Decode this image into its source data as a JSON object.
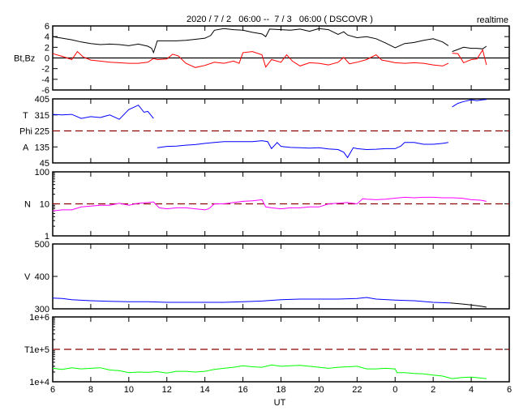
{
  "chart_data": {
    "type": "line",
    "title": "2020 / 7 / 2   06:00 --  7 / 3   06:00 ( DSCOVR )",
    "mode_label": "realtime",
    "xlabel": "UT",
    "xlim": [
      6,
      30
    ],
    "x_ticks": [
      "6",
      "8",
      "10",
      "12",
      "14",
      "16",
      "18",
      "20",
      "22",
      "0",
      "2",
      "4",
      "6"
    ],
    "colors": {
      "bt": "#000000",
      "bz": "#ff0000",
      "phi": "#0000ff",
      "n": "#ff00ff",
      "v": "#0000ff",
      "t": "#00ff00",
      "ref": "#8b0000"
    },
    "panels": [
      {
        "name": "bt-bz",
        "ylabel": "Bt,Bz",
        "scale": "linear",
        "ylim": [
          -6,
          6
        ],
        "y_ticks": [
          "6",
          "4",
          "2",
          "0",
          "-2",
          "-4",
          "-6"
        ],
        "y_tick_values": [
          6,
          4,
          2,
          0,
          -2,
          -4,
          -6
        ],
        "zero_line": 0,
        "series": [
          {
            "name": "Bt",
            "color_key": "bt",
            "x": [
              6,
              6.5,
              7,
              7.5,
              8,
              8.5,
              9,
              9.5,
              10,
              10.5,
              11,
              11.2,
              11.3,
              11.5,
              12,
              12.5,
              13,
              13.5,
              14,
              14.3,
              14.5,
              15,
              15.5,
              16,
              16.5,
              17,
              17.2,
              17.4,
              18,
              18.5,
              19,
              19.5,
              20,
              20.5,
              21,
              21.3,
              21.5,
              22,
              22.5,
              23,
              23.5,
              24,
              24.5,
              25,
              25.5,
              26,
              26.5,
              26.8
            ],
            "y": [
              4,
              3.7,
              3.4,
              3,
              2.7,
              2.5,
              2.6,
              2.5,
              2.3,
              2.6,
              2.2,
              1.8,
              1.0,
              3.2,
              3.2,
              3.2,
              3.3,
              3.5,
              3.7,
              4.2,
              5.2,
              5.5,
              5.3,
              5.2,
              4.8,
              4.5,
              4.0,
              5.4,
              5.3,
              5.2,
              5.4,
              5.0,
              5.5,
              5.3,
              4.4,
              4.9,
              4.3,
              3.8,
              4.0,
              3.6,
              2.8,
              1.9,
              2.7,
              2.9,
              3.3,
              3.6,
              3.0,
              2.3
            ]
          },
          {
            "name": "Bt (late)",
            "color_key": "bt",
            "x": [
              27,
              27.3,
              27.6,
              28,
              28.3,
              28.6,
              28.8
            ],
            "y": [
              1.2,
              1.6,
              2.0,
              1.8,
              1.8,
              1.7,
              2.2
            ]
          },
          {
            "name": "Bz",
            "color_key": "bz",
            "x": [
              6,
              6.5,
              7,
              7.3,
              7.6,
              8,
              8.5,
              9,
              9.5,
              10,
              10.5,
              11,
              11.3,
              11.5,
              12,
              12.3,
              12.6,
              13,
              13.5,
              14,
              14.5,
              15,
              15.5,
              15.8,
              16,
              16.5,
              17,
              17.2,
              17.5,
              18,
              18.3,
              18.6,
              19,
              19.5,
              20,
              20.5,
              21,
              21.3,
              21.6,
              22,
              22.5,
              23,
              23.3,
              23.6,
              24,
              24.5,
              25,
              25.5,
              26,
              26.5,
              26.8
            ],
            "y": [
              0.8,
              0.3,
              -0.3,
              1.2,
              0.2,
              -0.4,
              -0.6,
              -0.8,
              -0.9,
              -1.0,
              -1.0,
              -0.8,
              -0.1,
              -0.3,
              -0.2,
              0.7,
              0.4,
              -1.0,
              -1.8,
              -1.4,
              -0.8,
              -1.0,
              -0.6,
              -1.0,
              1.0,
              1.2,
              0.6,
              -1.7,
              -0.3,
              -0.8,
              0.6,
              -0.6,
              -1.5,
              -0.9,
              -1.0,
              -1.3,
              -0.8,
              0.1,
              -1.1,
              -0.8,
              -0.3,
              0.6,
              -0.4,
              -0.6,
              -0.9,
              -1.0,
              -0.9,
              -1.0,
              -1.3,
              -1.5,
              -1.0
            ]
          },
          {
            "name": "Bz (late)",
            "color_key": "bz",
            "x": [
              27,
              27.3,
              27.6,
              28,
              28.3,
              28.6,
              28.8
            ],
            "y": [
              0.9,
              0.8,
              -0.9,
              -0.3,
              -0.2,
              1.5,
              -1.3
            ]
          }
        ]
      },
      {
        "name": "phi",
        "ylabel": "T\nPhi\nA",
        "ylabel_parts": [
          "T",
          "Phi",
          "A"
        ],
        "scale": "linear",
        "ylim": [
          45,
          405
        ],
        "y_ticks": [
          "405",
          "315",
          "225",
          "135",
          "45"
        ],
        "y_tick_values": [
          405,
          315,
          225,
          135,
          45
        ],
        "ref_line": 225,
        "series": [
          {
            "name": "Phi (toward)",
            "color_key": "phi",
            "x": [
              6,
              6.5,
              7,
              7.5,
              8,
              8.5,
              9,
              9.5,
              10,
              10.3,
              10.5,
              10.8,
              11,
              11.3
            ],
            "y": [
              318,
              315,
              318,
              295,
              305,
              300,
              315,
              290,
              345,
              360,
              370,
              330,
              335,
              295
            ]
          },
          {
            "name": "Phi (away)",
            "color_key": "phi",
            "x": [
              11.5,
              12,
              12.5,
              13,
              13.5,
              14,
              14.5,
              15,
              15.5,
              16,
              16.5,
              17,
              17.3,
              17.5,
              17.8,
              18,
              18.5,
              19,
              19.5,
              20,
              20.5,
              21,
              21.3,
              21.5,
              21.8,
              22,
              22.5,
              23,
              23.5,
              24,
              24.3,
              24.5,
              25,
              25.5,
              26,
              26.5,
              26.8
            ],
            "y": [
              130,
              138,
              140,
              145,
              148,
              155,
              160,
              165,
              165,
              165,
              165,
              170,
              165,
              125,
              160,
              138,
              132,
              130,
              128,
              130,
              124,
              120,
              105,
              75,
              130,
              125,
              120,
              122,
              125,
              125,
              140,
              160,
              160,
              150,
              150,
              155,
              160
            ]
          },
          {
            "name": "Phi (late)",
            "color_key": "phi",
            "x": [
              27,
              27.3,
              27.6,
              28,
              28.3,
              28.6,
              28.8
            ],
            "y": [
              360,
              380,
              390,
              400,
              395,
              400,
              402
            ]
          }
        ]
      },
      {
        "name": "density",
        "ylabel": "N",
        "scale": "log",
        "ylim": [
          1,
          100
        ],
        "y_ticks": [
          "100",
          "10",
          "1"
        ],
        "y_tick_values": [
          100,
          10,
          1
        ],
        "ref_line": 10,
        "series": [
          {
            "name": "N",
            "color_key": "n",
            "x": [
              6,
              6.5,
              7,
              7.5,
              8,
              8.5,
              9,
              9.5,
              10,
              10.5,
              11,
              11.3,
              11.6,
              12,
              12.5,
              13,
              13.5,
              14,
              14.2,
              14.5,
              15,
              15.5,
              16,
              16.5,
              17,
              17.2,
              17.5,
              18,
              18.5,
              19,
              19.5,
              20,
              20.5,
              21,
              21.5,
              22,
              22.3,
              22.5,
              23,
              23.5,
              24,
              24.5,
              25,
              25.5,
              26,
              26.5,
              27,
              27.5,
              28,
              28.5,
              28.8
            ],
            "y": [
              6,
              6.5,
              6.5,
              8,
              8.5,
              9,
              9,
              10.5,
              9,
              10.5,
              11,
              11.5,
              7.5,
              7,
              7.5,
              7.5,
              7,
              6.5,
              7,
              10,
              10,
              11,
              12,
              12.5,
              13.5,
              8,
              7.5,
              7,
              7.5,
              7.5,
              8,
              8,
              10,
              10.5,
              11,
              10,
              14.5,
              14,
              13.5,
              14,
              15,
              16,
              15.5,
              16,
              16,
              15.5,
              15.5,
              15,
              13.5,
              13,
              12
            ]
          }
        ]
      },
      {
        "name": "speed",
        "ylabel": "V",
        "scale": "linear",
        "ylim": [
          300,
          500
        ],
        "y_ticks": [
          "500",
          "400",
          "300"
        ],
        "y_tick_values": [
          500,
          400,
          300
        ],
        "series": [
          {
            "name": "V",
            "color_key": "v",
            "x": [
              6,
              6.5,
              7,
              8,
              9,
              10,
              11,
              12,
              13,
              14,
              15,
              16,
              17,
              18,
              19,
              20,
              21,
              22,
              22.5,
              23,
              24,
              25,
              26,
              26.9
            ],
            "y": [
              333,
              332,
              328,
              325,
              323,
              322,
              322,
              320,
              320,
              320,
              320,
              322,
              324,
              328,
              330,
              330,
              330,
              332,
              335,
              330,
              327,
              325,
              320,
              318
            ]
          },
          {
            "name": "V (late)",
            "color_key": "bt",
            "x": [
              26.9,
              27.5,
              28,
              28.5,
              28.8
            ],
            "y": [
              318,
              315,
              312,
              308,
              305
            ]
          }
        ]
      },
      {
        "name": "temperature",
        "ylabel": "T",
        "scale": "log",
        "ylim": [
          10000,
          1000000
        ],
        "y_ticks": [
          "1e+6",
          "1e+5",
          "1e+4"
        ],
        "y_tick_values": [
          1000000,
          100000,
          10000
        ],
        "ref_line": 100000,
        "series": [
          {
            "name": "T",
            "color_key": "t",
            "x": [
              6,
              6.5,
              7,
              7.5,
              8,
              8.5,
              9,
              9.5,
              10,
              10.5,
              11,
              11.5,
              12,
              12.5,
              13,
              13.5,
              14,
              14.5,
              15,
              15.5,
              16,
              16.5,
              17,
              17.5,
              18,
              18.5,
              19,
              19.5,
              20,
              20.5,
              21,
              21.5,
              22,
              22.5,
              23,
              23.5,
              24,
              24.1,
              24.5,
              25,
              25.5,
              26,
              26.5,
              27,
              27.5,
              28,
              28.5,
              28.8
            ],
            "y": [
              26000,
              24000,
              27000,
              25000,
              26000,
              27000,
              23000,
              22000,
              19000,
              20000,
              19500,
              20500,
              18500,
              21000,
              21000,
              20000,
              21000,
              24000,
              26000,
              28000,
              31000,
              29000,
              28000,
              33000,
              30000,
              31000,
              32000,
              30000,
              28000,
              26000,
              28000,
              29000,
              30000,
              25000,
              25000,
              26000,
              25000,
              19000,
              19000,
              18000,
              17500,
              16000,
              15000,
              12500,
              13500,
              14000,
              13000,
              12500
            ]
          }
        ]
      }
    ]
  }
}
